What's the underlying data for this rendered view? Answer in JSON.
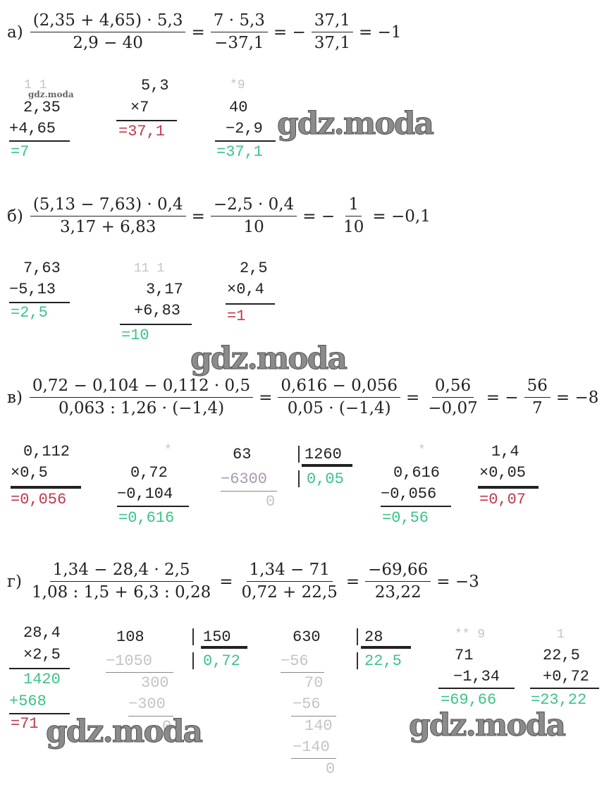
{
  "colors": {
    "text": "#222222",
    "result_green": "#3cc488",
    "result_red": "#c0394b",
    "carry_grey": "#c4c4c4"
  },
  "watermark": "gdz.moda",
  "a": {
    "label": "а)",
    "f1": {
      "num": "(2,35 + 4,65) · 5,3",
      "den": "2,9 − 40"
    },
    "op1": "=",
    "f2": {
      "num": "7 · 5,3",
      "den": "−37,1"
    },
    "op2": "= −",
    "f3": {
      "num": "37,1",
      "den": "37,1"
    },
    "op3": "= −1",
    "calc": {
      "c1": {
        "carry": "1 1",
        "l1": "2,35",
        "l2": "+4,65",
        "res": "=7"
      },
      "c2": {
        "l1": "5,3",
        "l2": "×7",
        "res": "=37,1"
      },
      "c3": {
        "carry": "*9",
        "l1": "40",
        "l2": "−2,9",
        "res": "=37,1"
      }
    }
  },
  "b": {
    "label": "б)",
    "f1": {
      "num": "(5,13 − 7,63) · 0,4",
      "den": "3,17 + 6,83"
    },
    "op1": "=",
    "f2": {
      "num": "−2,5 · 0,4",
      "den": "10"
    },
    "op2": "= −",
    "f3": {
      "num": "1",
      "den": "10"
    },
    "op3": "= −0,1",
    "calc": {
      "c1": {
        "l1": "7,63",
        "l2": "−5,13",
        "res": "=2,5"
      },
      "c2": {
        "carry": "11 1",
        "l1": "3,17",
        "l2": "+6,83",
        "res": "=10"
      },
      "c3": {
        "l1": "2,5",
        "l2": "×0,4",
        "res": "=1"
      }
    }
  },
  "v": {
    "label": "в)",
    "f1": {
      "num": "0,72 − 0,104 − 0,112 · 0,5",
      "den": "0,063 : 1,26 · (−1,4)"
    },
    "op1": "=",
    "f2": {
      "num": "0,616 − 0,056",
      "den": "0,05 · (−1,4)"
    },
    "op2": "=",
    "f3": {
      "num": "0,56",
      "den": "−0,07"
    },
    "op3": "= −",
    "f4": {
      "num": "56",
      "den": "7"
    },
    "op4": "= −8",
    "calc": {
      "c1": {
        "l1": "0,112",
        "l2": "×0,5",
        "res": "=0,056"
      },
      "c2": {
        "carry": "*",
        "l1": "0,72",
        "l2": "−0,104",
        "res": "=0,616"
      },
      "c3": {
        "dividend": "63",
        "divisor": "1260",
        "sub": "−6300",
        "rem": "0",
        "quot": "0,05"
      },
      "c4": {
        "carry": "*",
        "l1": "0,616",
        "l2": "−0,056",
        "res": "=0,56"
      },
      "c5": {
        "l1": "1,4",
        "l2": "×0,05",
        "res": "=0,07"
      }
    }
  },
  "g": {
    "label": "г)",
    "f1": {
      "num": "1,34 − 28,4 · 2,5",
      "den": "1,08 : 1,5 + 6,3 : 0,28"
    },
    "op1": "=",
    "f2": {
      "num": "1,34 − 71",
      "den": "0,72 + 22,5"
    },
    "op2": "=",
    "f3": {
      "num": "−69,66",
      "den": "23,22"
    },
    "op3": "= −3",
    "calc": {
      "c1": {
        "l1": "28,4",
        "l2": "×2,5",
        "p1": "1420",
        "p2": "+568",
        "res": "=71"
      },
      "c2": {
        "dividend": "108",
        "divisor": "150",
        "s1": "−1050",
        "r1": "300",
        "s2": "−300",
        "r2": "0",
        "quot": "0,72"
      },
      "c3": {
        "dividend": "630",
        "divisor": "28",
        "s1": "−56",
        "r1": "70",
        "s2": "−56",
        "r2": "140",
        "s3": "−140",
        "r3": "0",
        "quot": "22,5"
      },
      "c4": {
        "carry": "** 9",
        "l1": "71",
        "l2": "−1,34",
        "res": "=69,66"
      },
      "c5": {
        "carry": "1",
        "l1": "22,5",
        "l2": "+0,72",
        "res": "=23,22"
      }
    }
  }
}
